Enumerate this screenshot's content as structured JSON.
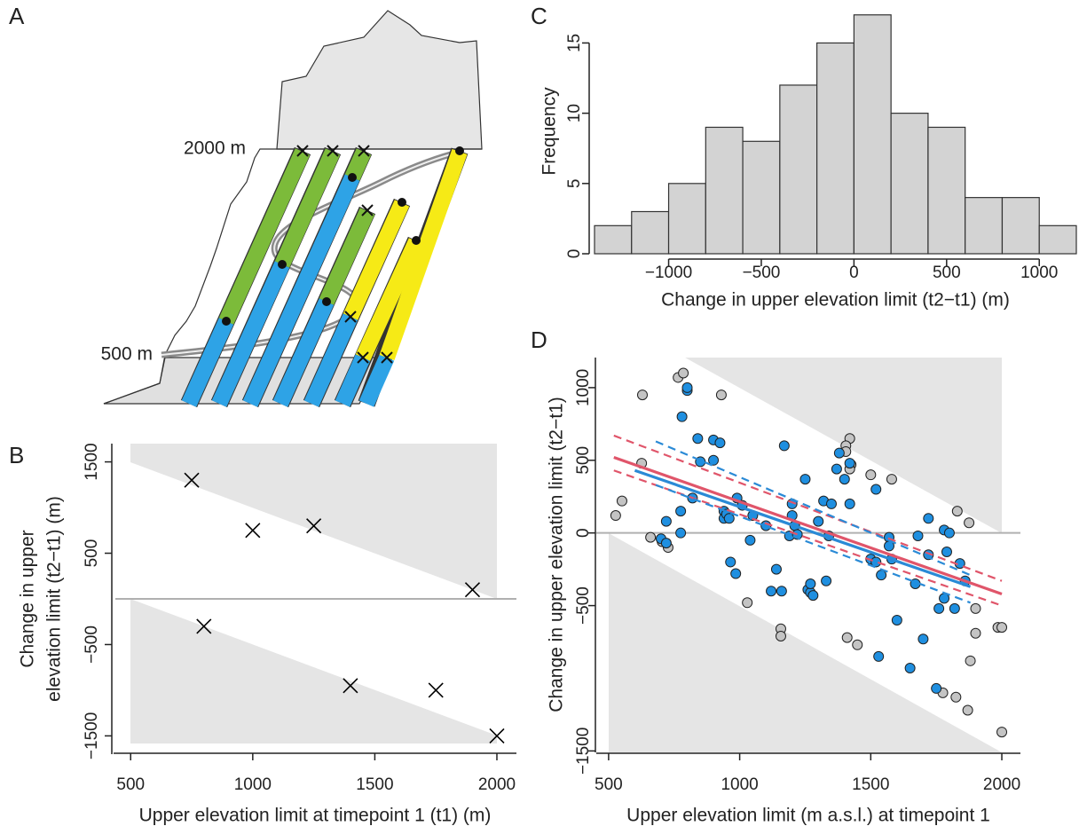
{
  "diagram": {
    "panel": "A",
    "labels": [
      "2000 m",
      "500 m"
    ]
  },
  "chart_data": [
    {
      "type": "scatter",
      "panel": "B",
      "marker": "x",
      "color": "#000000",
      "xlabel": "Upper elevation limit at timepoint 1 (t1) (m)",
      "ylabel": [
        "Change in upper",
        "elevation limit (t2−t1) (m)"
      ],
      "x": [
        750,
        1000,
        1250,
        1900,
        800,
        1400,
        1750,
        2000
      ],
      "values": [
        1300,
        750,
        800,
        100,
        -300,
        -950,
        -1000,
        -1500
      ],
      "hline": 0,
      "xlim": [
        430,
        2080
      ],
      "ylim": [
        -1700,
        1700
      ],
      "xticks": [
        500,
        1000,
        1500,
        2000
      ],
      "yticks": [
        1500,
        500,
        {
          "value": -500,
          "label": "−500"
        },
        {
          "value": -1500,
          "label": "−1500"
        }
      ]
    },
    {
      "type": "histogram",
      "panel": "C",
      "color": "#d3d3d3",
      "xlabel": "Change in upper elevation limit (t2−t1) (m)",
      "ylabel": [
        "Frequency"
      ],
      "bins": [
        -1400,
        -1200,
        -1000,
        -800,
        -600,
        -400,
        -200,
        0,
        200,
        400,
        600,
        800,
        1000,
        1200
      ],
      "values": [
        2,
        3,
        5,
        9,
        8,
        12,
        15,
        17,
        10,
        9,
        4,
        4,
        2
      ],
      "xlim": [
        -1400,
        1200
      ],
      "ylim": [
        0,
        17.3
      ],
      "xticks": [
        {
          "value": -1000,
          "label": "−1000"
        },
        {
          "value": -500,
          "label": "−500"
        },
        0,
        500,
        1000
      ],
      "yticks": [
        0,
        5,
        10,
        15
      ]
    },
    {
      "type": "scatter",
      "panel": "D",
      "marker": "circle",
      "xlabel": "Upper elevation limit (m a.s.l.) at timepoint 1",
      "ylabel": [
        "Change in upper elevation limit (t2−t1)"
      ],
      "series": [
        {
          "color": "#c4c4c4",
          "x": [
            527,
            551,
            629,
            626,
            660,
            704,
            727,
            765,
            785,
            930,
            1029,
            1157,
            1157,
            1420,
            1405,
            1405,
            1425,
            1420,
            1410,
            1449,
            1500,
            1580,
            1830,
            1875,
            1900,
            1900,
            1880,
            1985,
            2000,
            2000,
            1775,
            1825,
            1870
          ],
          "values": [
            120,
            220,
            950,
            480,
            -30,
            -60,
            -100,
            1070,
            1100,
            950,
            -480,
            -660,
            -710,
            650,
            600,
            560,
            470,
            440,
            -720,
            -770,
            400,
            370,
            150,
            70,
            -520,
            -690,
            -880,
            -650,
            -650,
            -1370,
            -1100,
            -1130,
            -1220
          ]
        },
        {
          "color": "#1f8fe0",
          "x": [
            700,
            720,
            775,
            775,
            780,
            800,
            800,
            820,
            840,
            850,
            720,
            900,
            900,
            925,
            940,
            940,
            950,
            960,
            965,
            985,
            990,
            1010,
            1040,
            1050,
            1100,
            1120,
            1140,
            1160,
            1170,
            1190,
            1200,
            1200,
            1210,
            1220,
            1250,
            1260,
            1270,
            1270,
            1280,
            1300,
            1320,
            1330,
            1340,
            1350,
            1370,
            1380,
            1400,
            1420,
            1420,
            1500,
            1520,
            1520,
            1530,
            1540,
            1570,
            1570,
            1580,
            1600,
            1650,
            1670,
            1680,
            1700,
            1720,
            1720,
            1750,
            1760,
            1780,
            1780,
            1790,
            1800,
            1820,
            1840,
            1860
          ],
          "values": [
            -40,
            80,
            150,
            0,
            800,
            980,
            1000,
            240,
            650,
            490,
            -70,
            640,
            500,
            620,
            150,
            100,
            130,
            100,
            -200,
            -280,
            240,
            190,
            -50,
            120,
            50,
            -400,
            -250,
            -400,
            600,
            -20,
            200,
            120,
            50,
            -10,
            370,
            -390,
            -410,
            -350,
            -430,
            80,
            220,
            -330,
            -20,
            200,
            440,
            550,
            370,
            480,
            200,
            -180,
            -200,
            300,
            -850,
            -290,
            -30,
            -90,
            -180,
            -600,
            -930,
            -350,
            -20,
            -730,
            100,
            -150,
            -1070,
            -520,
            20,
            -450,
            -130,
            0,
            -520,
            -210,
            -330
          ]
        }
      ],
      "lines": [
        {
          "color": "#e0556a",
          "style": "solid",
          "x": [
            520,
            2000
          ],
          "values": [
            520,
            -420
          ]
        },
        {
          "color": "#e0556a",
          "style": "dashed",
          "x": [
            520,
            2000
          ],
          "values": [
            670,
            -330
          ]
        },
        {
          "color": "#e0556a",
          "style": "dashed",
          "x": [
            520,
            2000
          ],
          "values": [
            430,
            -500
          ]
        },
        {
          "color": "#2a8ad6",
          "style": "solid",
          "x": [
            600,
            1880
          ],
          "values": [
            430,
            -370
          ]
        },
        {
          "color": "#2a8ad6",
          "style": "dashed",
          "x": [
            680,
            1880
          ],
          "values": [
            630,
            -290
          ]
        },
        {
          "color": "#2a8ad6",
          "style": "dashed",
          "x": [
            680,
            1880
          ],
          "values": [
            330,
            -480
          ]
        }
      ],
      "hline": 0,
      "xlim": [
        453,
        2071
      ],
      "ylim": [
        -1510,
        1207
      ],
      "xticks": [
        500,
        1000,
        1500,
        2000
      ],
      "yticks": [
        1000,
        500,
        0,
        {
          "value": -500,
          "label": "−500"
        },
        {
          "value": -1500,
          "label": "−1500"
        }
      ]
    }
  ]
}
